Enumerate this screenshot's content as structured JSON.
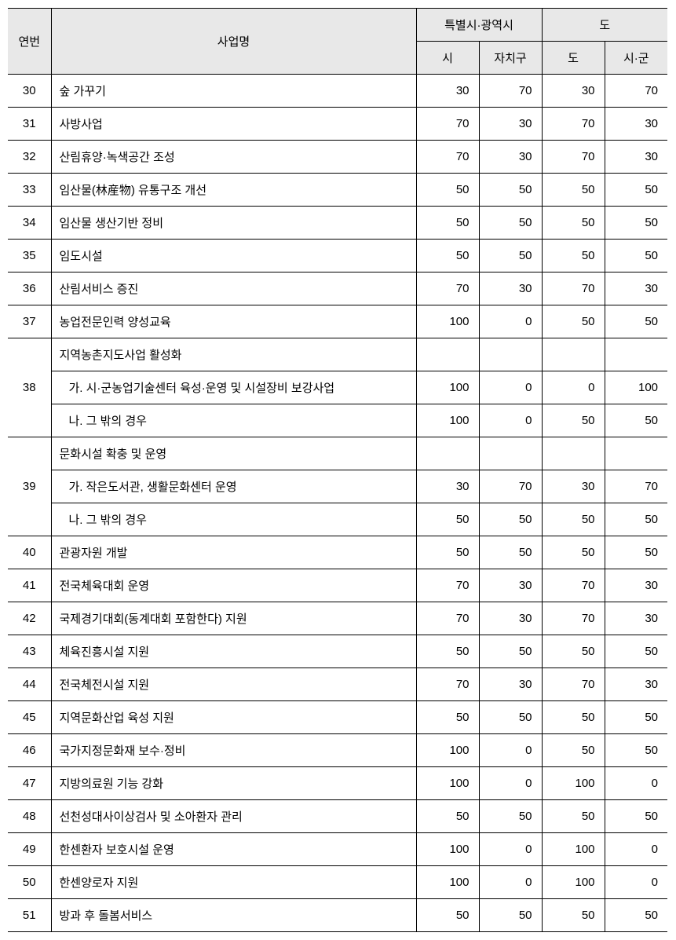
{
  "headers": {
    "num": "연번",
    "name": "사업명",
    "group1": "특별시·광역시",
    "group2": "도",
    "si": "시",
    "jachigu": "자치구",
    "do": "도",
    "sigun": "시·군"
  },
  "rows": [
    {
      "num": "30",
      "name": "숲 가꾸기",
      "v1": 30,
      "v2": 70,
      "v3": 30,
      "v4": 70
    },
    {
      "num": "31",
      "name": "사방사업",
      "v1": 70,
      "v2": 30,
      "v3": 70,
      "v4": 30
    },
    {
      "num": "32",
      "name": "산림휴양·녹색공간 조성",
      "v1": 70,
      "v2": 30,
      "v3": 70,
      "v4": 30
    },
    {
      "num": "33",
      "name": "임산물(林産物) 유통구조 개선",
      "v1": 50,
      "v2": 50,
      "v3": 50,
      "v4": 50
    },
    {
      "num": "34",
      "name": "임산물 생산기반 정비",
      "v1": 50,
      "v2": 50,
      "v3": 50,
      "v4": 50
    },
    {
      "num": "35",
      "name": "임도시설",
      "v1": 50,
      "v2": 50,
      "v3": 50,
      "v4": 50
    },
    {
      "num": "36",
      "name": "산림서비스 증진",
      "v1": 70,
      "v2": 30,
      "v3": 70,
      "v4": 30
    },
    {
      "num": "37",
      "name": "농업전문인력 양성교육",
      "v1": 100,
      "v2": 0,
      "v3": 50,
      "v4": 50
    },
    {
      "num": "38",
      "header": "지역농촌지도사업 활성화",
      "subs": [
        {
          "name": "가. 시·군농업기술센터 육성·운영 및 시설장비 보강사업",
          "v1": 100,
          "v2": 0,
          "v3": 0,
          "v4": 100
        },
        {
          "name": "나. 그 밖의 경우",
          "v1": 100,
          "v2": 0,
          "v3": 50,
          "v4": 50
        }
      ]
    },
    {
      "num": "39",
      "header": "문화시설 확충 및 운영",
      "subs": [
        {
          "name": "가. 작은도서관, 생활문화센터 운영",
          "v1": 30,
          "v2": 70,
          "v3": 30,
          "v4": 70
        },
        {
          "name": "나. 그 밖의 경우",
          "v1": 50,
          "v2": 50,
          "v3": 50,
          "v4": 50
        }
      ]
    },
    {
      "num": "40",
      "name": "관광자원 개발",
      "v1": 50,
      "v2": 50,
      "v3": 50,
      "v4": 50
    },
    {
      "num": "41",
      "name": "전국체육대회 운영",
      "v1": 70,
      "v2": 30,
      "v3": 70,
      "v4": 30
    },
    {
      "num": "42",
      "name": "국제경기대회(동계대회 포함한다) 지원",
      "v1": 70,
      "v2": 30,
      "v3": 70,
      "v4": 30
    },
    {
      "num": "43",
      "name": "체육진흥시설 지원",
      "v1": 50,
      "v2": 50,
      "v3": 50,
      "v4": 50
    },
    {
      "num": "44",
      "name": "전국체전시설 지원",
      "v1": 70,
      "v2": 30,
      "v3": 70,
      "v4": 30
    },
    {
      "num": "45",
      "name": "지역문화산업 육성 지원",
      "v1": 50,
      "v2": 50,
      "v3": 50,
      "v4": 50
    },
    {
      "num": "46",
      "name": "국가지정문화재 보수·정비",
      "v1": 100,
      "v2": 0,
      "v3": 50,
      "v4": 50
    },
    {
      "num": "47",
      "name": "지방의료원 기능 강화",
      "v1": 100,
      "v2": 0,
      "v3": 100,
      "v4": 0
    },
    {
      "num": "48",
      "name": "선천성대사이상검사 및 소아환자 관리",
      "v1": 50,
      "v2": 50,
      "v3": 50,
      "v4": 50
    },
    {
      "num": "49",
      "name": "한센환자 보호시설 운영",
      "v1": 100,
      "v2": 0,
      "v3": 100,
      "v4": 0
    },
    {
      "num": "50",
      "name": "한센양로자 지원",
      "v1": 100,
      "v2": 0,
      "v3": 100,
      "v4": 0
    },
    {
      "num": "51",
      "name": "방과 후 돌봄서비스",
      "v1": 50,
      "v2": 50,
      "v3": 50,
      "v4": 50
    }
  ]
}
